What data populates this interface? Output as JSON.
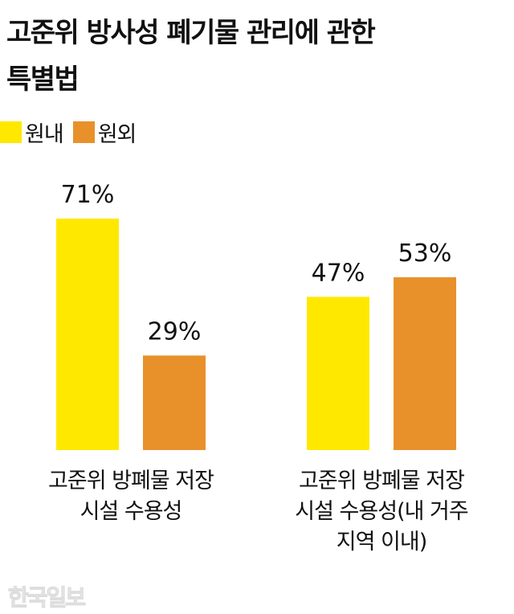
{
  "chart_data": {
    "type": "bar",
    "title": "고준위 방사성 폐기물 관리에 관한 특별법",
    "title_lines": [
      "고준위 방사성 폐기물 관리에 관한",
      "특별법"
    ],
    "categories": [
      "고준위 방폐물 저장 시설 수용성",
      "고준위 방폐물 저장 시설 수용성(내 거주 지역 이내)"
    ],
    "category_lines": [
      [
        "고준위 방폐물 저장",
        "시설 수용성"
      ],
      [
        "고준위 방폐물 저장",
        "시설 수용성(내 거주",
        "지역 이내)"
      ]
    ],
    "series": [
      {
        "name": "원내",
        "color": "#FFE800",
        "values": [
          71,
          47
        ],
        "labels": [
          "71%",
          "47%"
        ]
      },
      {
        "name": "원외",
        "color": "#E8912B",
        "values": [
          29,
          53
        ],
        "labels": [
          "29%",
          "53%"
        ]
      }
    ],
    "ylim": [
      0,
      100
    ],
    "grid": false,
    "legend_position": "top-left"
  },
  "watermark": "한국일보"
}
